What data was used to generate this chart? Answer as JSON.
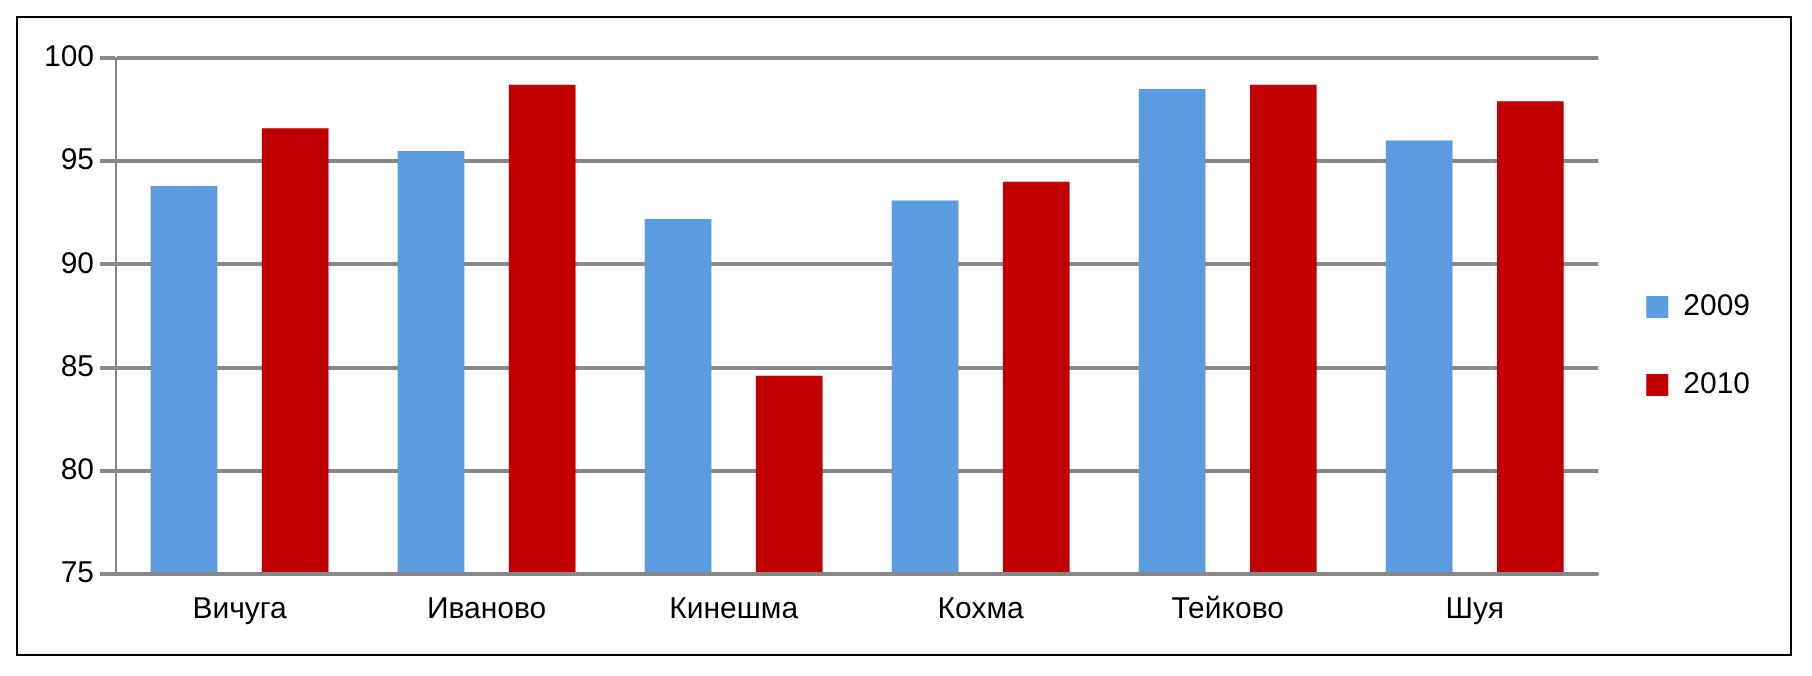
{
  "chart_data": {
    "type": "bar",
    "categories": [
      "Вичуга",
      "Иваново",
      "Кинешма",
      "Кохма",
      "Тейково",
      "Шуя"
    ],
    "series": [
      {
        "name": "2009",
        "color": "#5b9be0",
        "values": [
          93.8,
          95.5,
          92.2,
          93.1,
          98.5,
          96.0
        ]
      },
      {
        "name": "2010",
        "color": "#c00000",
        "values": [
          96.6,
          98.7,
          84.6,
          94.0,
          98.7,
          97.9
        ]
      }
    ],
    "ylim": [
      75,
      100
    ],
    "yticks": [
      75,
      80,
      85,
      90,
      95,
      100
    ],
    "grid": "y",
    "legend": "right"
  }
}
